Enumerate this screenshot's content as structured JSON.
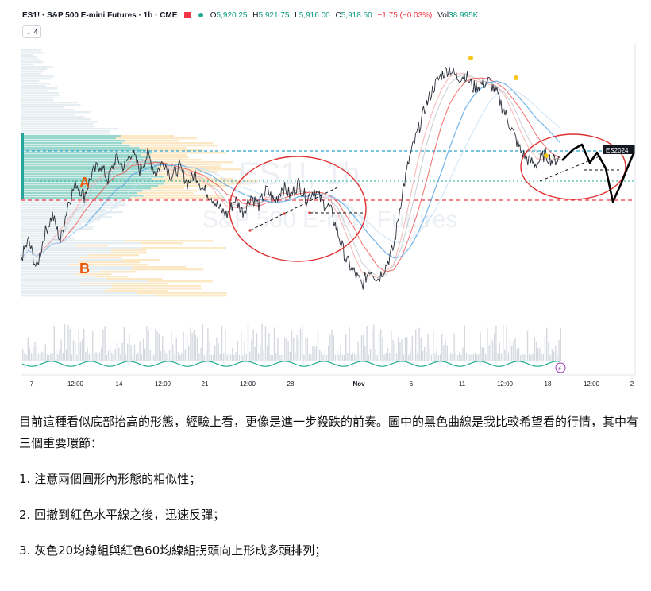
{
  "legend": {
    "symbol": "ES1! · S&P 500 E-mini Futures · 1h · CME",
    "open_key": "O",
    "open": "5,920.25",
    "high_key": "H",
    "high": "5,921.75",
    "low_key": "L",
    "low": "5,916.00",
    "close_key": "C",
    "close": "5,918.50",
    "change": "−1.75 (−0.03%)",
    "vol_key": "Vol",
    "volume": "38.995K",
    "collapse_label": "⌄ 4"
  },
  "watermark": {
    "line1": "ES1!, 1h",
    "line2": "S&P 500 E-mini Futures"
  },
  "chart_data": {
    "type": "line",
    "series": [
      {
        "values": [
          5760,
          5790,
          5745,
          5800,
          5830,
          5790,
          5850,
          5880,
          5860,
          5895,
          5910,
          5885,
          5920,
          5905,
          5930,
          5900,
          5925,
          5895,
          5915,
          5890,
          5905,
          5880,
          5895,
          5870,
          5860,
          5840,
          5830,
          5855,
          5835,
          5860,
          5845,
          5870,
          5850,
          5875,
          5860,
          5880,
          5855,
          5870,
          5850,
          5840,
          5800,
          5760,
          5740,
          5720,
          5745,
          5730,
          5750,
          5780,
          5860,
          5920,
          5960,
          6000,
          6030,
          6050,
          6060,
          6045,
          6050,
          6030,
          6035,
          6040,
          6020,
          5990,
          5960,
          5930,
          5915,
          5910,
          5925,
          5915,
          5920
        ]
      }
    ],
    "x_tick_labels": [
      "7",
      "12:00",
      "14",
      "12:00",
      "21",
      "12:00",
      "28",
      "Nov",
      "6",
      "11",
      "12:00",
      "18",
      "12:00",
      "2"
    ],
    "annotations": {
      "price_tag": "ES2024",
      "zone_a": "A",
      "zone_b": "B"
    }
  },
  "article": {
    "p1": "目前這種看似底部抬高的形態，經驗上看，更像是進一步殺跌的前奏。圖中的黑色曲線是我比較希望看的行情，其中有三個重要環節：",
    "item1": "1. 注意兩個圓形內形態的相似性；",
    "item2": "2. 回撤到紅色水平線之後，迅速反彈；",
    "item3": "3. 灰色20均線組與紅色60均線組拐頭向上形成多頭排列；"
  }
}
